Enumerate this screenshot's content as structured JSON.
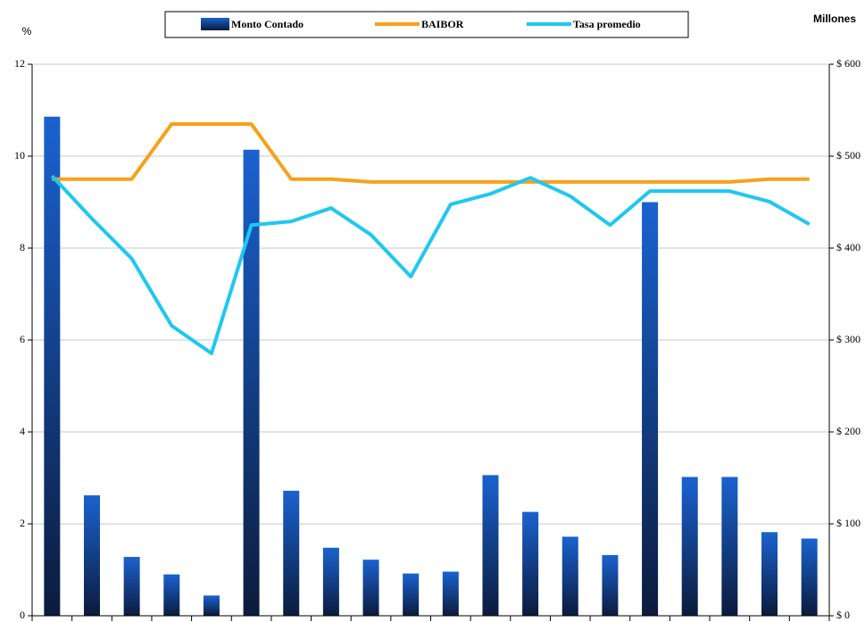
{
  "chart_data": {
    "type": "bar_line",
    "y_label": "%",
    "y2_label": "Millones",
    "categories": [
      null,
      null,
      null,
      null,
      null,
      null,
      null,
      null,
      null,
      null,
      null,
      null,
      null,
      null,
      null,
      null,
      null,
      null,
      null,
      null
    ],
    "ylim": [
      0,
      12
    ],
    "yticks": [
      0,
      2,
      4,
      6,
      8,
      10,
      12
    ],
    "y2lim": [
      0,
      600
    ],
    "y2ticks": [
      {
        "value": 0,
        "label": "$ 0"
      },
      {
        "value": 100,
        "label": "$ 100"
      },
      {
        "value": 200,
        "label": "$ 200"
      },
      {
        "value": 300,
        "label": "$ 300"
      },
      {
        "value": 400,
        "label": "$ 400"
      },
      {
        "value": 500,
        "label": "$ 500"
      },
      {
        "value": 600,
        "label": "$ 600"
      }
    ],
    "grid": true,
    "legend": "top",
    "series": [
      {
        "name": "Monto Contado",
        "type": "bar",
        "axis": "y2",
        "color": "#1a62d0",
        "values": [
          543,
          131,
          64,
          45,
          22,
          507,
          136,
          74,
          61,
          46,
          48,
          153,
          113,
          86,
          66,
          450,
          151,
          151,
          91,
          84
        ]
      },
      {
        "name": "BAIBOR",
        "type": "line",
        "axis": "y",
        "color": "#f7a11a",
        "values": [
          9.5,
          9.5,
          9.5,
          10.7,
          10.7,
          10.7,
          9.5,
          9.5,
          9.44,
          9.44,
          9.44,
          9.44,
          9.44,
          9.44,
          9.44,
          9.44,
          9.44,
          9.44,
          9.5,
          9.5
        ]
      },
      {
        "name": "Tasa promedio",
        "type": "line",
        "axis": "y",
        "color": "#1ec8f0",
        "values": [
          9.57,
          8.64,
          7.77,
          6.31,
          5.71,
          8.5,
          8.58,
          8.87,
          8.29,
          7.38,
          8.95,
          9.18,
          9.53,
          9.13,
          8.5,
          9.24,
          9.24,
          9.24,
          9.01,
          8.52
        ]
      }
    ]
  }
}
